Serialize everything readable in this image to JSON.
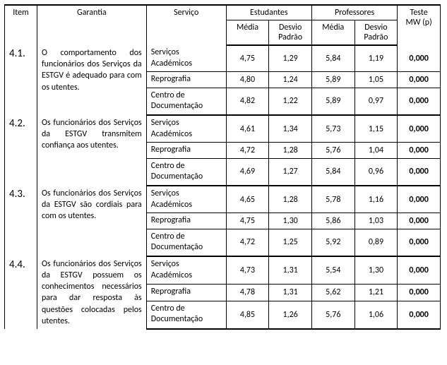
{
  "header": {
    "item": "Item",
    "garantia": "Garantia",
    "servico": "Serviço",
    "estudantes": "Estudantes",
    "professores": "Professores",
    "media": "Média",
    "desvio": "Desvio Padrão",
    "teste": "Teste MW (p)"
  },
  "services": {
    "sa": "Serviços Académicos",
    "rep": "Reprografia",
    "cd": "Centro de Documentação"
  },
  "rows": [
    {
      "id": "4.1.",
      "garantia": "O comportamento dos funcionários dos Serviços da ESTGV é adequado para com os utentes.",
      "data": [
        {
          "svc": "sa",
          "em": "4,75",
          "ed": "1,29",
          "pm": "5,84",
          "pd": "1,19",
          "mw": "0,000"
        },
        {
          "svc": "rep",
          "em": "4,80",
          "ed": "1,24",
          "pm": "5,89",
          "pd": "1,05",
          "mw": "0,000"
        },
        {
          "svc": "cd",
          "em": "4,82",
          "ed": "1,22",
          "pm": "5,89",
          "pd": "0,97",
          "mw": "0,000"
        }
      ]
    },
    {
      "id": "4.2.",
      "garantia": "Os funcionários dos Serviços da ESTGV transmitem confiança aos utentes.",
      "data": [
        {
          "svc": "sa",
          "em": "4,61",
          "ed": "1,34",
          "pm": "5,73",
          "pd": "1,15",
          "mw": "0,000"
        },
        {
          "svc": "rep",
          "em": "4,72",
          "ed": "1,28",
          "pm": "5,76",
          "pd": "1,04",
          "mw": "0,000"
        },
        {
          "svc": "cd",
          "em": "4,69",
          "ed": "1,27",
          "pm": "5,84",
          "pd": "0,96",
          "mw": "0,000"
        }
      ]
    },
    {
      "id": "4.3.",
      "garantia": "Os funcionários dos Serviços da ESTGV são cordiais para com os utentes.",
      "data": [
        {
          "svc": "sa",
          "em": "4,65",
          "ed": "1,28",
          "pm": "5,78",
          "pd": "1,16",
          "mw": "0,000"
        },
        {
          "svc": "rep",
          "em": "4,75",
          "ed": "1,30",
          "pm": "5,86",
          "pd": "1,03",
          "mw": "0,000"
        },
        {
          "svc": "cd",
          "em": "4,72",
          "ed": "1,25",
          "pm": "5,92",
          "pd": "0,89",
          "mw": "0,000"
        }
      ]
    },
    {
      "id": "4.4.",
      "garantia": "Os funcionários dos Serviços da ESTGV possuem os conhecimentos necessários para dar resposta às questões colocadas pelos utentes.",
      "data": [
        {
          "svc": "sa",
          "em": "4,73",
          "ed": "1,31",
          "pm": "5,54",
          "pd": "1,30",
          "mw": "0,000"
        },
        {
          "svc": "rep",
          "em": "4,78",
          "ed": "1,31",
          "pm": "5,62",
          "pd": "1,21",
          "mw": "0,000"
        },
        {
          "svc": "cd",
          "em": "4,85",
          "ed": "1,26",
          "pm": "5,76",
          "pd": "1,06",
          "mw": "0,000"
        }
      ]
    }
  ]
}
